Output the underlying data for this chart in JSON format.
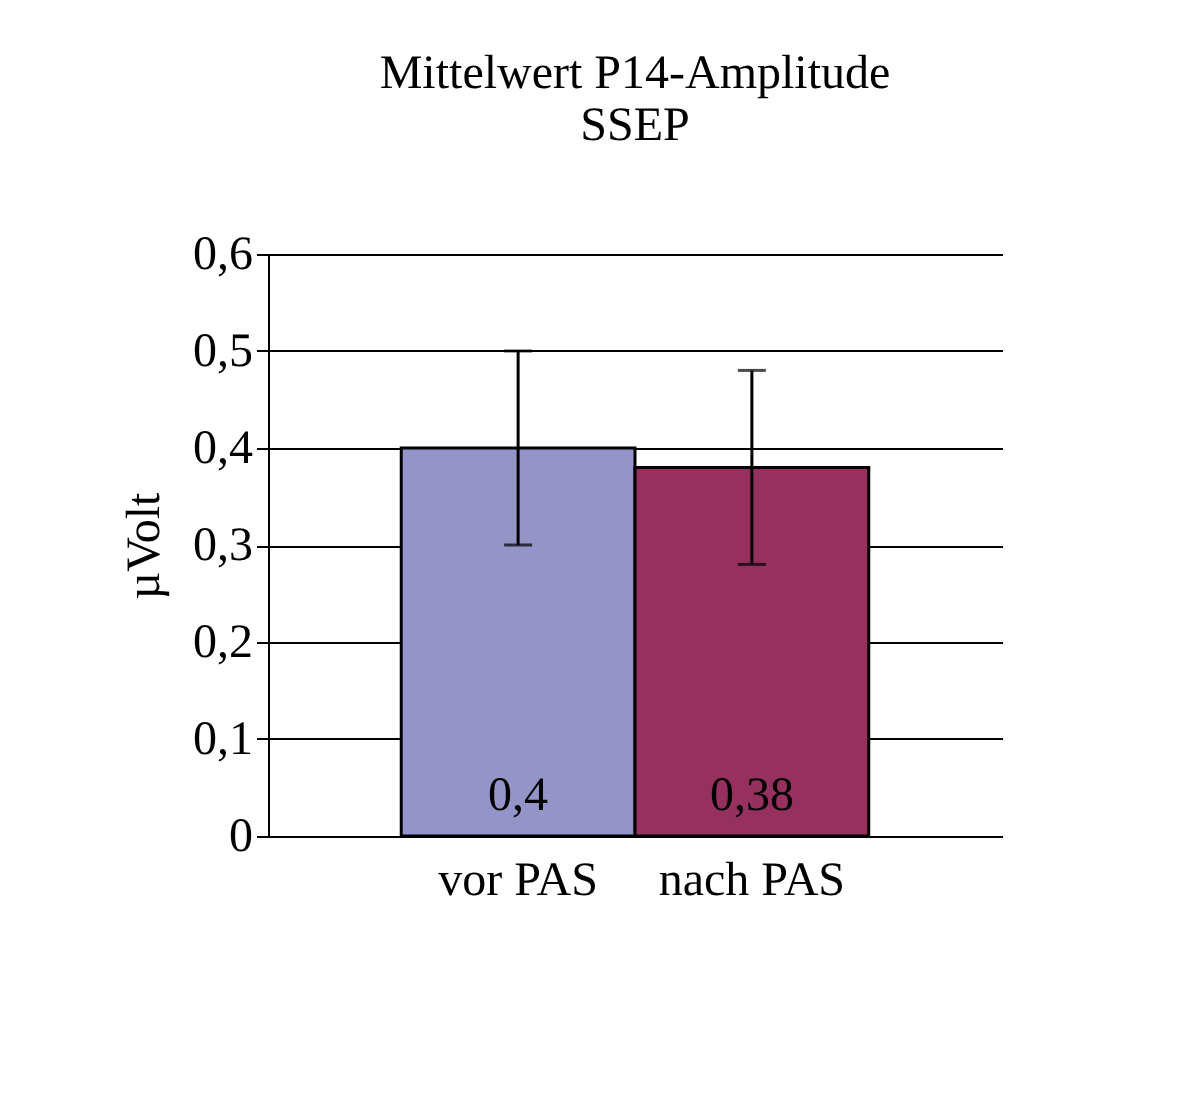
{
  "chart_data": {
    "type": "bar",
    "title": [
      "Mittelwert P14-Amplitude",
      "SSEP"
    ],
    "ylabel": "µVolt",
    "categories": [
      "vor PAS",
      "nach PAS"
    ],
    "values": [
      0.4,
      0.38
    ],
    "colors": [
      "#9494c8",
      "#95305f"
    ],
    "errors": [
      0.1,
      0.1
    ],
    "value_labels": [
      "0,4",
      "0,38"
    ],
    "ylim": [
      0,
      0.6
    ],
    "yticks": [
      {
        "value": 0,
        "label": "0"
      },
      {
        "value": 0.1,
        "label": "0,1"
      },
      {
        "value": 0.2,
        "label": "0,2"
      },
      {
        "value": 0.3,
        "label": "0,3"
      },
      {
        "value": 0.4,
        "label": "0,4"
      },
      {
        "value": 0.5,
        "label": "0,5"
      },
      {
        "value": 0.6,
        "label": "0,6"
      }
    ],
    "grid": "y"
  }
}
